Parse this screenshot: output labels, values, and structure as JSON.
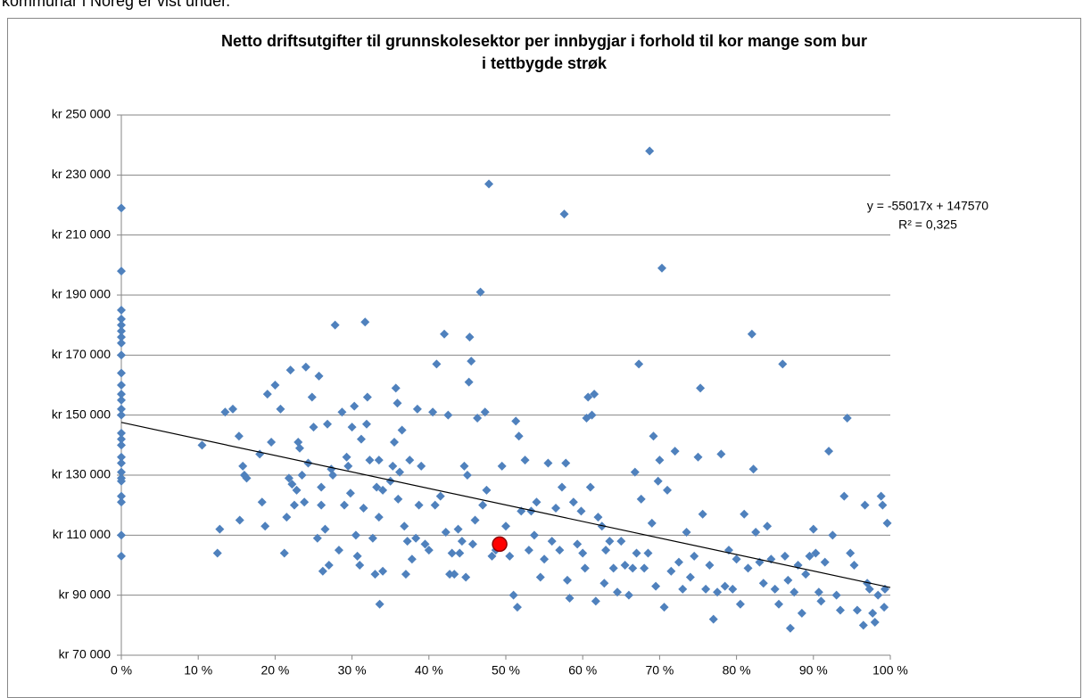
{
  "intro": "kommunar i Noreg er vist under.",
  "chart_data": {
    "type": "scatter",
    "title": [
      "Netto driftsutgifter til grunnskolesektor per innbygjar i forhold til kor mange som bur",
      "i tettbygde strøk"
    ],
    "xlim": [
      0,
      1
    ],
    "xticks": [
      {
        "value": 0,
        "label": "0 %"
      },
      {
        "value": 0.1,
        "label": "10 %"
      },
      {
        "value": 0.2,
        "label": "20 %"
      },
      {
        "value": 0.3,
        "label": "30 %"
      },
      {
        "value": 0.4,
        "label": "40 %"
      },
      {
        "value": 0.5,
        "label": "50 %"
      },
      {
        "value": 0.6,
        "label": "60 %"
      },
      {
        "value": 0.7,
        "label": "70 %"
      },
      {
        "value": 0.8,
        "label": "80 %"
      },
      {
        "value": 0.9,
        "label": "90 %"
      },
      {
        "value": 1,
        "label": "100 %"
      }
    ],
    "ylim": [
      70000,
      250000
    ],
    "yticks": [
      {
        "value": 70000,
        "label": "kr 70 000"
      },
      {
        "value": 90000,
        "label": "kr 90 000"
      },
      {
        "value": 110000,
        "label": "kr 110 000"
      },
      {
        "value": 130000,
        "label": "kr 130 000"
      },
      {
        "value": 150000,
        "label": "kr 150 000"
      },
      {
        "value": 170000,
        "label": "kr 170 000"
      },
      {
        "value": 190000,
        "label": "kr 190 000"
      },
      {
        "value": 210000,
        "label": "kr 210 000"
      },
      {
        "value": 230000,
        "label": "kr 230 000"
      },
      {
        "value": 250000,
        "label": "kr 250 000"
      }
    ],
    "grid": true,
    "series": [
      {
        "color": "#4f81bd",
        "marker": "diamond",
        "x": [
          0,
          0,
          0,
          0,
          0,
          0,
          0,
          0,
          0,
          0,
          0,
          0,
          0,
          0,
          0,
          0,
          0,
          0,
          0,
          0,
          0,
          0,
          0,
          0,
          0,
          0,
          0,
          0.105,
          0.125,
          0.128,
          0.135,
          0.145,
          0.153,
          0.154,
          0.158,
          0.16,
          0.163,
          0.18,
          0.183,
          0.187,
          0.19,
          0.195,
          0.2,
          0.207,
          0.212,
          0.215,
          0.218,
          0.22,
          0.222,
          0.225,
          0.228,
          0.23,
          0.232,
          0.235,
          0.238,
          0.24,
          0.243,
          0.248,
          0.25,
          0.255,
          0.257,
          0.26,
          0.26,
          0.262,
          0.265,
          0.268,
          0.27,
          0.273,
          0.275,
          0.278,
          0.283,
          0.287,
          0.29,
          0.293,
          0.295,
          0.298,
          0.3,
          0.303,
          0.305,
          0.307,
          0.31,
          0.312,
          0.315,
          0.317,
          0.319,
          0.32,
          0.323,
          0.327,
          0.33,
          0.332,
          0.335,
          0.335,
          0.336,
          0.34,
          0.34,
          0.35,
          0.353,
          0.355,
          0.357,
          0.359,
          0.36,
          0.362,
          0.365,
          0.368,
          0.37,
          0.372,
          0.375,
          0.378,
          0.383,
          0.385,
          0.387,
          0.39,
          0.395,
          0.4,
          0.405,
          0.408,
          0.41,
          0.415,
          0.42,
          0.422,
          0.425,
          0.427,
          0.43,
          0.433,
          0.438,
          0.44,
          0.443,
          0.446,
          0.448,
          0.45,
          0.452,
          0.453,
          0.455,
          0.457,
          0.46,
          0.463,
          0.467,
          0.47,
          0.473,
          0.475,
          0.478,
          0.482,
          0.487,
          0.495,
          0.5,
          0.505,
          0.51,
          0.513,
          0.515,
          0.517,
          0.52,
          0.525,
          0.53,
          0.533,
          0.537,
          0.54,
          0.545,
          0.55,
          0.555,
          0.56,
          0.565,
          0.57,
          0.573,
          0.576,
          0.578,
          0.58,
          0.583,
          0.588,
          0.593,
          0.598,
          0.6,
          0.603,
          0.605,
          0.607,
          0.61,
          0.612,
          0.615,
          0.617,
          0.62,
          0.625,
          0.628,
          0.63,
          0.635,
          0.64,
          0.645,
          0.65,
          0.655,
          0.66,
          0.665,
          0.668,
          0.67,
          0.673,
          0.676,
          0.68,
          0.685,
          0.687,
          0.69,
          0.692,
          0.695,
          0.698,
          0.7,
          0.703,
          0.706,
          0.71,
          0.715,
          0.72,
          0.725,
          0.73,
          0.735,
          0.74,
          0.745,
          0.75,
          0.753,
          0.756,
          0.76,
          0.765,
          0.77,
          0.775,
          0.78,
          0.785,
          0.79,
          0.795,
          0.8,
          0.805,
          0.81,
          0.815,
          0.82,
          0.822,
          0.825,
          0.83,
          0.835,
          0.84,
          0.845,
          0.85,
          0.855,
          0.86,
          0.863,
          0.867,
          0.87,
          0.875,
          0.88,
          0.885,
          0.89,
          0.895,
          0.9,
          0.903,
          0.907,
          0.91,
          0.915,
          0.92,
          0.925,
          0.93,
          0.935,
          0.94,
          0.944,
          0.948,
          0.953,
          0.957,
          0.965,
          0.967,
          0.97,
          0.973,
          0.977,
          0.98,
          0.984,
          0.988,
          0.99,
          0.992,
          0.996,
          0.993
        ],
        "values": [
          219000,
          198000,
          185000,
          182000,
          180000,
          178000,
          176000,
          174000,
          170000,
          164000,
          160000,
          157000,
          155000,
          152000,
          150000,
          144000,
          142000,
          140000,
          136000,
          134000,
          131000,
          129000,
          128000,
          123000,
          121000,
          110000,
          103000,
          140000,
          104000,
          112000,
          151000,
          152000,
          143000,
          115000,
          133000,
          130000,
          129000,
          137000,
          121000,
          113000,
          157000,
          141000,
          160000,
          152000,
          104000,
          116000,
          129000,
          165000,
          127000,
          120000,
          125000,
          141000,
          139000,
          130000,
          121000,
          166000,
          134000,
          156000,
          146000,
          109000,
          163000,
          126000,
          120000,
          98000,
          112000,
          147000,
          100000,
          132000,
          130000,
          180000,
          105000,
          151000,
          120000,
          136000,
          133000,
          124000,
          146000,
          153000,
          110000,
          103000,
          100000,
          142000,
          119000,
          181000,
          147000,
          156000,
          135000,
          109000,
          97000,
          126000,
          135000,
          116000,
          87000,
          98000,
          125000,
          128000,
          133000,
          141000,
          159000,
          154000,
          122000,
          131000,
          145000,
          113000,
          97000,
          108000,
          135000,
          102000,
          109000,
          152000,
          120000,
          133000,
          107000,
          105000,
          151000,
          120000,
          167000,
          123000,
          177000,
          111000,
          150000,
          97000,
          104000,
          97000,
          112000,
          104000,
          108000,
          133000,
          96000,
          130000,
          161000,
          176000,
          168000,
          107000,
          115000,
          149000,
          191000,
          120000,
          151000,
          125000,
          227000,
          103000,
          105000,
          133000,
          113000,
          103000,
          90000,
          148000,
          86000,
          143000,
          118000,
          135000,
          105000,
          118000,
          110000,
          121000,
          96000,
          102000,
          134000,
          108000,
          119000,
          105000,
          126000,
          217000,
          134000,
          95000,
          89000,
          121000,
          107000,
          118000,
          104000,
          99000,
          149000,
          156000,
          126000,
          150000,
          157000,
          88000,
          116000,
          113000,
          94000,
          105000,
          108000,
          99000,
          91000,
          108000,
          100000,
          90000,
          99000,
          131000,
          104000,
          167000,
          122000,
          99000,
          104000,
          238000,
          114000,
          143000,
          93000,
          128000,
          135000,
          199000,
          86000,
          125000,
          98000,
          138000,
          101000,
          92000,
          111000,
          96000,
          103000,
          136000,
          159000,
          117000,
          92000,
          100000,
          82000,
          91000,
          137000,
          93000,
          105000,
          92000,
          102000,
          87000,
          117000,
          99000,
          177000,
          132000,
          111000,
          101000,
          94000,
          113000,
          102000,
          92000,
          87000,
          167000,
          103000,
          95000,
          79000,
          91000,
          100000,
          84000,
          97000,
          103000,
          112000,
          104000,
          91000,
          88000,
          101000,
          138000,
          110000,
          90000,
          85000,
          123000,
          149000,
          104000,
          100000,
          85000,
          80000,
          120000,
          94000,
          92000,
          84000,
          81000,
          90000,
          123000,
          120000,
          86000,
          114000,
          92000
        ]
      },
      {
        "color": "#ff0000",
        "marker": "circle",
        "x": [
          0.492
        ],
        "values": [
          107000
        ]
      }
    ],
    "trendline": {
      "equation": "y = -55017x + 147570",
      "r2": "R² = 0,325",
      "slope": -55017,
      "intercept": 147570,
      "color": "#000000"
    }
  }
}
